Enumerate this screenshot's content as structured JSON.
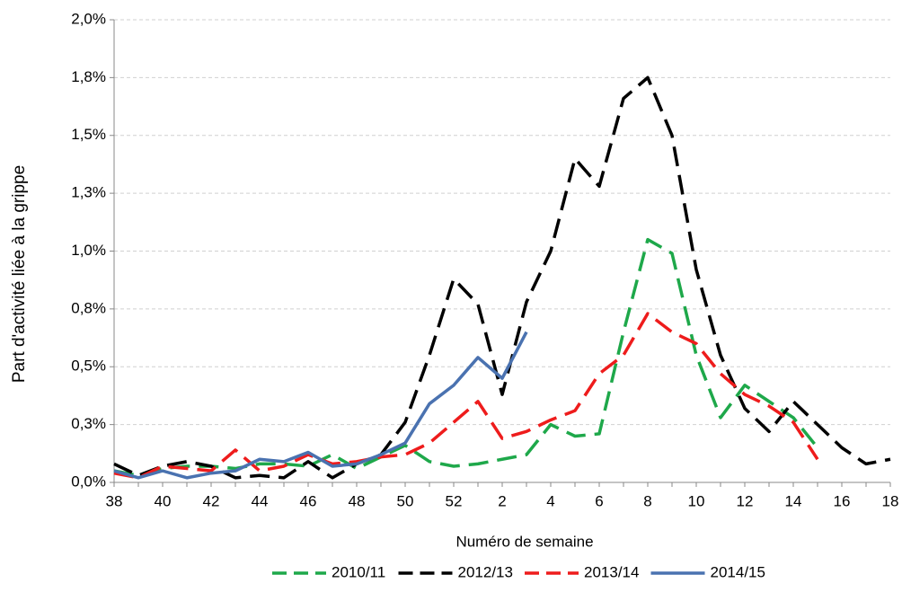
{
  "chart_data": {
    "type": "line",
    "x_label": "Numéro de semaine",
    "y_label": "Part d'activité liée à la grippe",
    "categories": [
      "38",
      null,
      "40",
      null,
      "42",
      null,
      "44",
      null,
      "46",
      null,
      "48",
      null,
      "50",
      null,
      "52",
      null,
      "2",
      null,
      "4",
      null,
      "6",
      null,
      "8",
      null,
      "10",
      null,
      "12",
      null,
      "14",
      null,
      "16",
      null,
      "18"
    ],
    "ylim": [
      0,
      2
    ],
    "yticks": [
      {
        "value": 0,
        "label": "0,0%"
      },
      {
        "value": 0.25,
        "label": "0,3%"
      },
      {
        "value": 0.5,
        "label": "0,5%"
      },
      {
        "value": 0.75,
        "label": "0,8%"
      },
      {
        "value": 1,
        "label": "1,0%"
      },
      {
        "value": 1.25,
        "label": "1,3%"
      },
      {
        "value": 1.5,
        "label": "1,5%"
      },
      {
        "value": 1.75,
        "label": "1,8%"
      },
      {
        "value": 2,
        "label": "2,0%"
      }
    ],
    "grid": true,
    "legend": "bottom",
    "series": [
      {
        "name": "2010/11",
        "color": "#1ea84a",
        "dashed": true,
        "values": [
          0.05,
          0.03,
          0.06,
          0.07,
          0.07,
          0.06,
          0.08,
          0.08,
          0.07,
          0.12,
          0.06,
          0.11,
          0.16,
          0.09,
          0.07,
          0.08,
          0.1,
          0.12,
          0.25,
          0.2,
          0.21,
          0.65,
          1.05,
          0.99,
          0.55,
          0.28,
          0.42,
          0.35,
          0.28,
          0.15,
          null,
          null,
          null
        ]
      },
      {
        "name": "2012/13",
        "color": "#000000",
        "dashed": true,
        "values": [
          0.08,
          0.03,
          0.07,
          0.09,
          0.07,
          0.02,
          0.03,
          0.02,
          0.09,
          0.02,
          0.08,
          0.12,
          0.26,
          0.55,
          0.88,
          0.77,
          0.38,
          0.78,
          1.0,
          1.4,
          1.28,
          1.66,
          1.75,
          1.5,
          0.92,
          0.55,
          0.32,
          0.22,
          0.35,
          0.25,
          0.15,
          0.08,
          0.1
        ]
      },
      {
        "name": "2013/14",
        "color": "#ee1c1c",
        "dashed": true,
        "values": [
          0.04,
          0.02,
          0.07,
          0.06,
          0.05,
          0.14,
          0.05,
          0.07,
          0.12,
          0.08,
          0.09,
          0.11,
          0.12,
          0.17,
          0.26,
          0.35,
          0.19,
          0.22,
          0.27,
          0.31,
          0.47,
          0.55,
          0.73,
          0.65,
          0.6,
          0.47,
          0.38,
          0.33,
          0.26,
          0.1,
          null,
          null,
          null
        ]
      },
      {
        "name": "2014/15",
        "color": "#4a72b0",
        "dashed": false,
        "values": [
          0.05,
          0.02,
          0.05,
          0.02,
          0.04,
          0.05,
          0.1,
          0.09,
          0.13,
          0.07,
          0.08,
          0.12,
          0.17,
          0.34,
          0.42,
          0.54,
          0.45,
          0.65,
          null,
          null,
          null,
          null,
          null,
          null,
          null,
          null,
          null,
          null,
          null,
          null,
          null,
          null,
          null
        ]
      }
    ]
  }
}
